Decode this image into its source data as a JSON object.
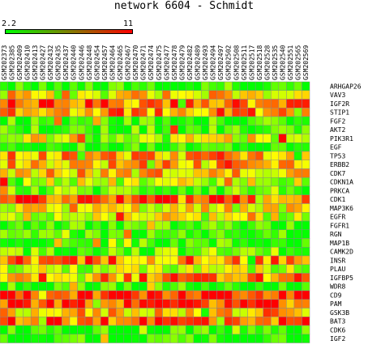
{
  "chart_data": {
    "type": "heatmap",
    "title": "network 6604 - Schmidt",
    "legend": {
      "min": "2.2",
      "max": "11",
      "min_color": "#00ff00",
      "max_color": "#ff0000"
    },
    "columns": [
      "GSM202373",
      "GSM202385",
      "GSM202409",
      "GSM202410",
      "GSM202413",
      "GSM202427",
      "GSM202432",
      "GSM202435",
      "GSM202437",
      "GSM202440",
      "GSM202446",
      "GSM202448",
      "GSM202454",
      "GSM202457",
      "GSM202464",
      "GSM202465",
      "GSM202467",
      "GSM202470",
      "GSM202471",
      "GSM202474",
      "GSM202475",
      "GSM202477",
      "GSM202478",
      "GSM202479",
      "GSM202482",
      "GSM202489",
      "GSM202493",
      "GSM202494",
      "GSM202497",
      "GSM202502",
      "GSM202508",
      "GSM202511",
      "GSM202517",
      "GSM202518",
      "GSM202528",
      "GSM202535",
      "GSM202540",
      "GSM202551",
      "GSM202565",
      "GSM202569"
    ],
    "rows": [
      "ARHGAP26",
      "VAV3",
      "IGF2R",
      "STIP1",
      "FGF2",
      "AKT2",
      "PIK3R1",
      "EGF",
      "TP53",
      "ERBB2",
      "CDK7",
      "CDKN1A",
      "PRKCA",
      "CDK1",
      "MAP3K6",
      "EGFR",
      "FGFR1",
      "RGN",
      "MAP1B",
      "CAMK2D",
      "INSR",
      "PLAU",
      "IGFBP5",
      "WDR8",
      "CD9",
      "PAM",
      "GSK3B",
      "BAT3",
      "CDK6",
      "IGF2"
    ],
    "row_levels": [
      0.05,
      0.55,
      0.78,
      0.7,
      0.08,
      0.1,
      0.45,
      0.05,
      0.68,
      0.62,
      0.6,
      0.38,
      0.22,
      0.78,
      0.48,
      0.4,
      0.08,
      0.05,
      0.1,
      0.22,
      0.75,
      0.35,
      0.72,
      0.05,
      0.92,
      0.9,
      0.6,
      0.85,
      0.05,
      0.1
    ]
  }
}
